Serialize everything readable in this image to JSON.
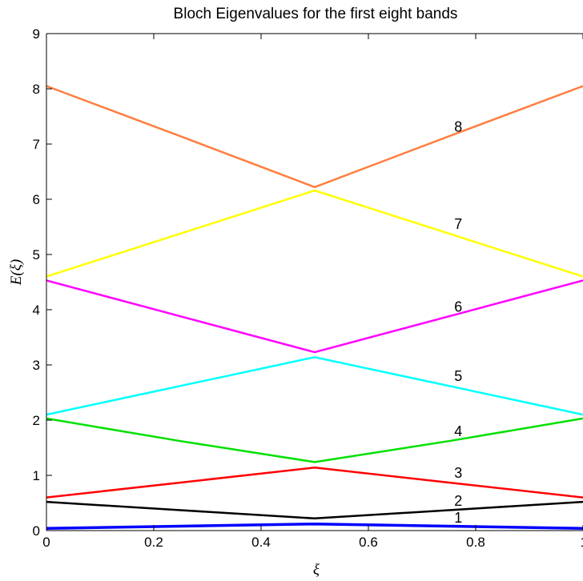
{
  "chart_data": {
    "type": "line",
    "title": "Bloch Eigenvalues for the first eight bands",
    "xlabel": "ξ",
    "ylabel": "E(ξ)",
    "xlim": [
      0,
      1
    ],
    "ylim": [
      0,
      9
    ],
    "xticks": [
      {
        "value": 0,
        "label": "0"
      },
      {
        "value": 0.2,
        "label": "0.2"
      },
      {
        "value": 0.4,
        "label": "0.4"
      },
      {
        "value": 0.6,
        "label": "0.6"
      },
      {
        "value": 0.8,
        "label": "0.8"
      },
      {
        "value": 1,
        "label": "1"
      }
    ],
    "yticks": [
      {
        "value": 0,
        "label": "0"
      },
      {
        "value": 1,
        "label": "1"
      },
      {
        "value": 2,
        "label": "2"
      },
      {
        "value": 3,
        "label": "3"
      },
      {
        "value": 4,
        "label": "4"
      },
      {
        "value": 5,
        "label": "5"
      },
      {
        "value": 6,
        "label": "6"
      },
      {
        "value": 7,
        "label": "7"
      },
      {
        "value": 8,
        "label": "8"
      },
      {
        "value": 9,
        "label": "9"
      }
    ],
    "grid": false,
    "series": [
      {
        "label": "1",
        "color": "#0000ff",
        "x": [
          0,
          0.25,
          0.5,
          0.75,
          1
        ],
        "values": [
          0.04,
          0.08,
          0.12,
          0.08,
          0.04
        ],
        "label_at": [
          0.76,
          0.06
        ]
      },
      {
        "label": "2",
        "color": "#000000",
        "x": [
          0,
          0.25,
          0.5,
          0.75,
          1
        ],
        "values": [
          0.52,
          0.37,
          0.22,
          0.37,
          0.52
        ],
        "label_at": [
          0.76,
          0.36
        ]
      },
      {
        "label": "3",
        "color": "#ff0000",
        "x": [
          0,
          0.25,
          0.5,
          0.75,
          1
        ],
        "values": [
          0.6,
          0.87,
          1.14,
          0.87,
          0.6
        ],
        "label_at": [
          0.76,
          0.87
        ]
      },
      {
        "label": "4",
        "color": "#00e000",
        "x": [
          0,
          0.25,
          0.5,
          0.75,
          1
        ],
        "values": [
          2.03,
          1.62,
          1.24,
          1.62,
          2.03
        ],
        "label_at": [
          0.76,
          1.62
        ]
      },
      {
        "label": "5",
        "color": "#00ffff",
        "x": [
          0,
          0.25,
          0.5,
          0.75,
          1
        ],
        "values": [
          2.1,
          2.62,
          3.14,
          2.62,
          2.1
        ],
        "label_at": [
          0.76,
          2.62
        ]
      },
      {
        "label": "6",
        "color": "#ff00ff",
        "x": [
          0,
          0.25,
          0.5,
          0.75,
          1
        ],
        "values": [
          4.53,
          3.88,
          3.23,
          3.88,
          4.53
        ],
        "label_at": [
          0.76,
          3.88
        ]
      },
      {
        "label": "7",
        "color": "#ffff00",
        "x": [
          0,
          0.25,
          0.5,
          0.75,
          1
        ],
        "values": [
          4.6,
          5.38,
          6.16,
          5.38,
          4.6
        ],
        "label_at": [
          0.76,
          5.38
        ]
      },
      {
        "label": "8",
        "color": "#ff7f40",
        "x": [
          0,
          0.25,
          0.5,
          0.75,
          1
        ],
        "values": [
          8.05,
          7.14,
          6.22,
          7.14,
          8.05
        ],
        "label_at": [
          0.76,
          7.14
        ]
      }
    ]
  }
}
